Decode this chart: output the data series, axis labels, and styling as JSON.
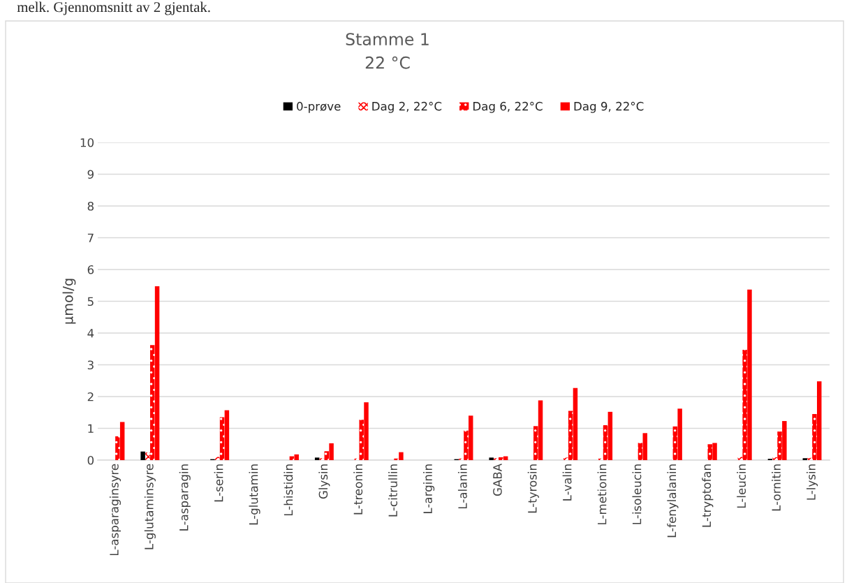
{
  "chart_data": {
    "type": "bar",
    "title": "Stamme 1\n22 °C",
    "ylabel": "µmol/g",
    "annotations": [
      "melk. Gjennomsnitt av 2 gjentak."
    ],
    "categories": [
      "L-asparaginsyre",
      "L-glutaminsyre",
      "L-asparagin",
      "L-serin",
      "L-glutamin",
      "L-histidin",
      "Glysin",
      "L-treonin",
      "L-citrullin",
      "L-arginin",
      "L-alanin",
      "GABA",
      "L-tyrosin",
      "L-valin",
      "L-metionin",
      "L-isoleucin",
      "L-fenylalanin",
      "L-tryptofan",
      "L-leucin",
      "L-ornitin",
      "L-lysin"
    ],
    "series": [
      {
        "name": "0-prøve",
        "color": "#000000",
        "values": [
          null,
          0.27,
          null,
          0.03,
          null,
          null,
          0.08,
          null,
          null,
          null,
          0.03,
          0.08,
          null,
          null,
          null,
          null,
          null,
          null,
          null,
          0.04,
          0.06
        ]
      },
      {
        "name": "Dag 2, 22°C",
        "color": "#ff0000",
        "values": [
          null,
          0.24,
          null,
          0.1,
          null,
          null,
          0.06,
          0.05,
          null,
          null,
          0.05,
          0.06,
          null,
          0.08,
          0.05,
          null,
          null,
          null,
          0.1,
          0.09,
          0.07
        ]
      },
      {
        "name": "Dag 6, 22°C",
        "color": "#ff0000",
        "values": [
          0.75,
          3.62,
          null,
          1.35,
          null,
          0.12,
          0.28,
          1.27,
          0.05,
          null,
          0.93,
          0.09,
          1.07,
          1.55,
          1.1,
          0.54,
          1.06,
          0.5,
          3.47,
          0.9,
          1.45
        ]
      },
      {
        "name": "Dag 9, 22°C",
        "color": "#ff0000",
        "values": [
          1.2,
          5.47,
          null,
          1.57,
          null,
          0.18,
          0.53,
          1.82,
          0.25,
          null,
          1.4,
          0.12,
          1.88,
          2.27,
          1.52,
          0.85,
          1.62,
          0.54,
          5.37,
          1.23,
          2.48
        ]
      }
    ],
    "ylim": [
      0,
      10
    ],
    "yticks": [
      0,
      1,
      2,
      3,
      4,
      5,
      6,
      7,
      8,
      9,
      10
    ],
    "grid": "y",
    "legend": "top"
  }
}
